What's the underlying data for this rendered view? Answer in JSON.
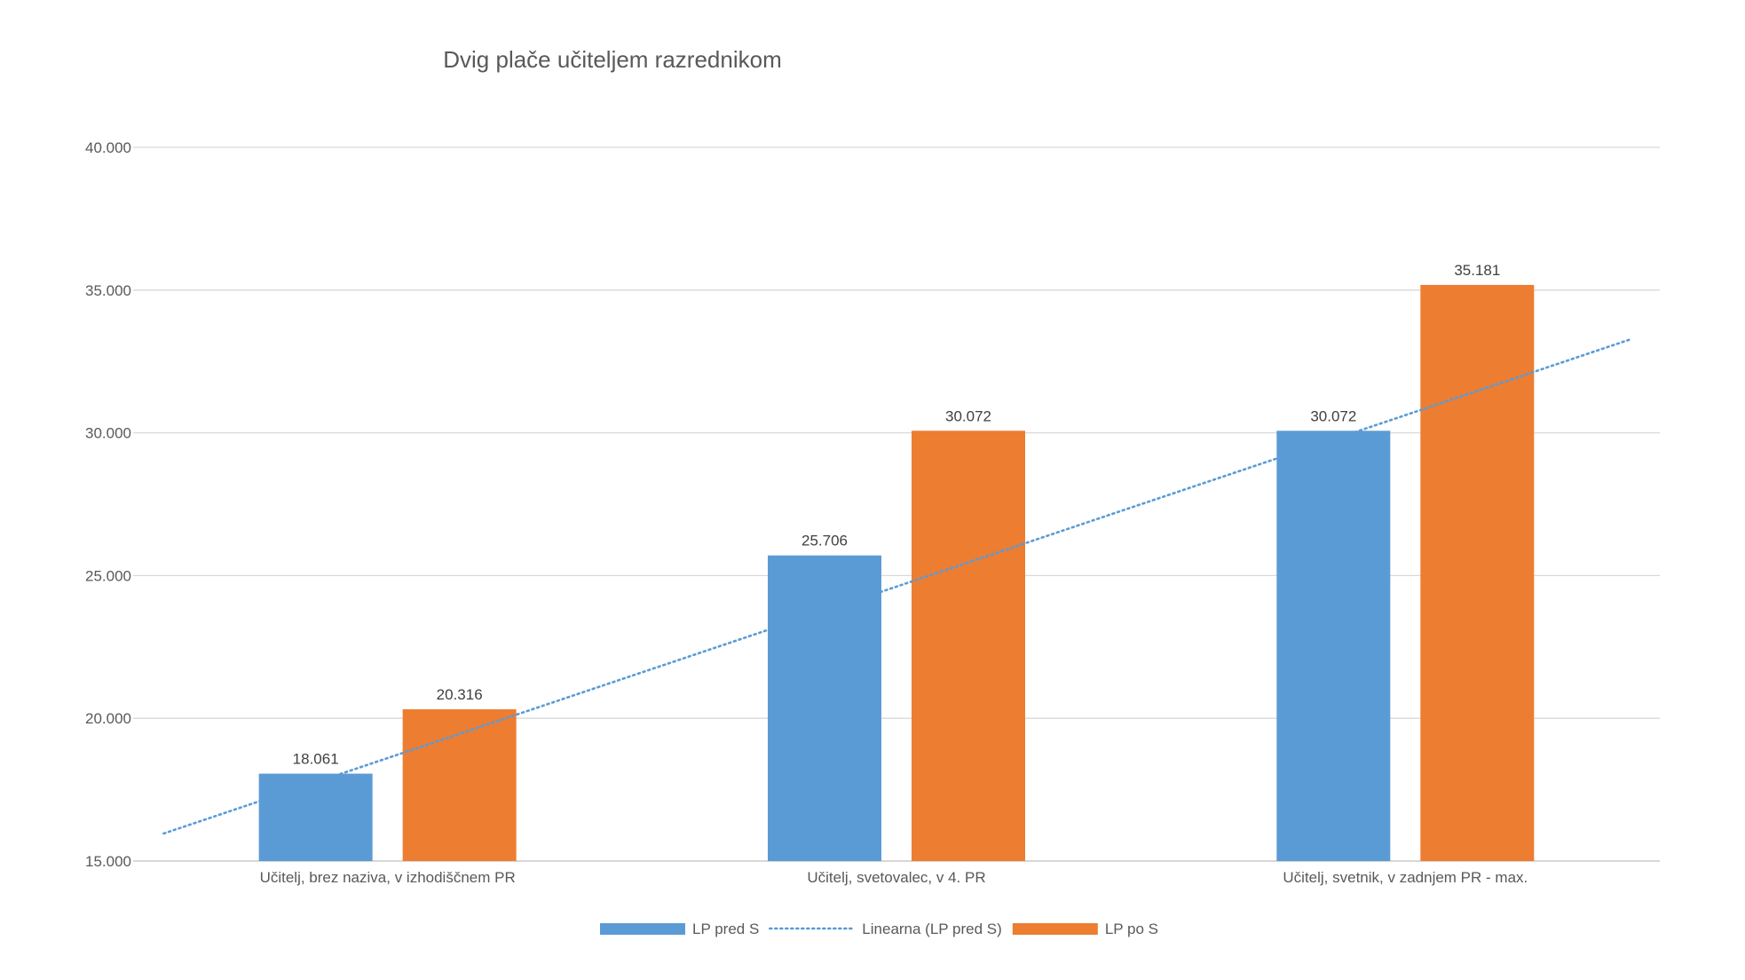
{
  "chart_data": {
    "type": "bar",
    "title": "Dvig plače učiteljem razrednikom",
    "xlabel": "",
    "ylabel": "",
    "ylim": [
      15000,
      40000
    ],
    "yticks": [
      15000,
      20000,
      25000,
      30000,
      35000,
      40000
    ],
    "ytick_labels": [
      "15.000",
      "20.000",
      "25.000",
      "30.000",
      "35.000",
      "40.000"
    ],
    "grid": true,
    "legend_position": "bottom",
    "categories": [
      "Učitelj, brez naziva, v izhodiščnem PR",
      "Učitelj, svetovalec, v 4. PR",
      "Učitelj, svetnik, v zadnjem PR - max."
    ],
    "series": [
      {
        "name": "LP pred S",
        "color": "#5B9BD5",
        "values": [
          18061,
          25706,
          30072
        ],
        "labels": [
          "18.061",
          "25.706",
          "30.072"
        ]
      },
      {
        "name": "LP po S",
        "color": "#ED7D31",
        "values": [
          20316,
          30072,
          35181
        ],
        "labels": [
          "20.316",
          "30.072",
          "35.181"
        ]
      }
    ],
    "trendline": {
      "name": "Linearna (LP pred S)",
      "type": "linear",
      "of_series": "LP pred S",
      "color": "#5B9BD5",
      "style": "dotted"
    }
  }
}
